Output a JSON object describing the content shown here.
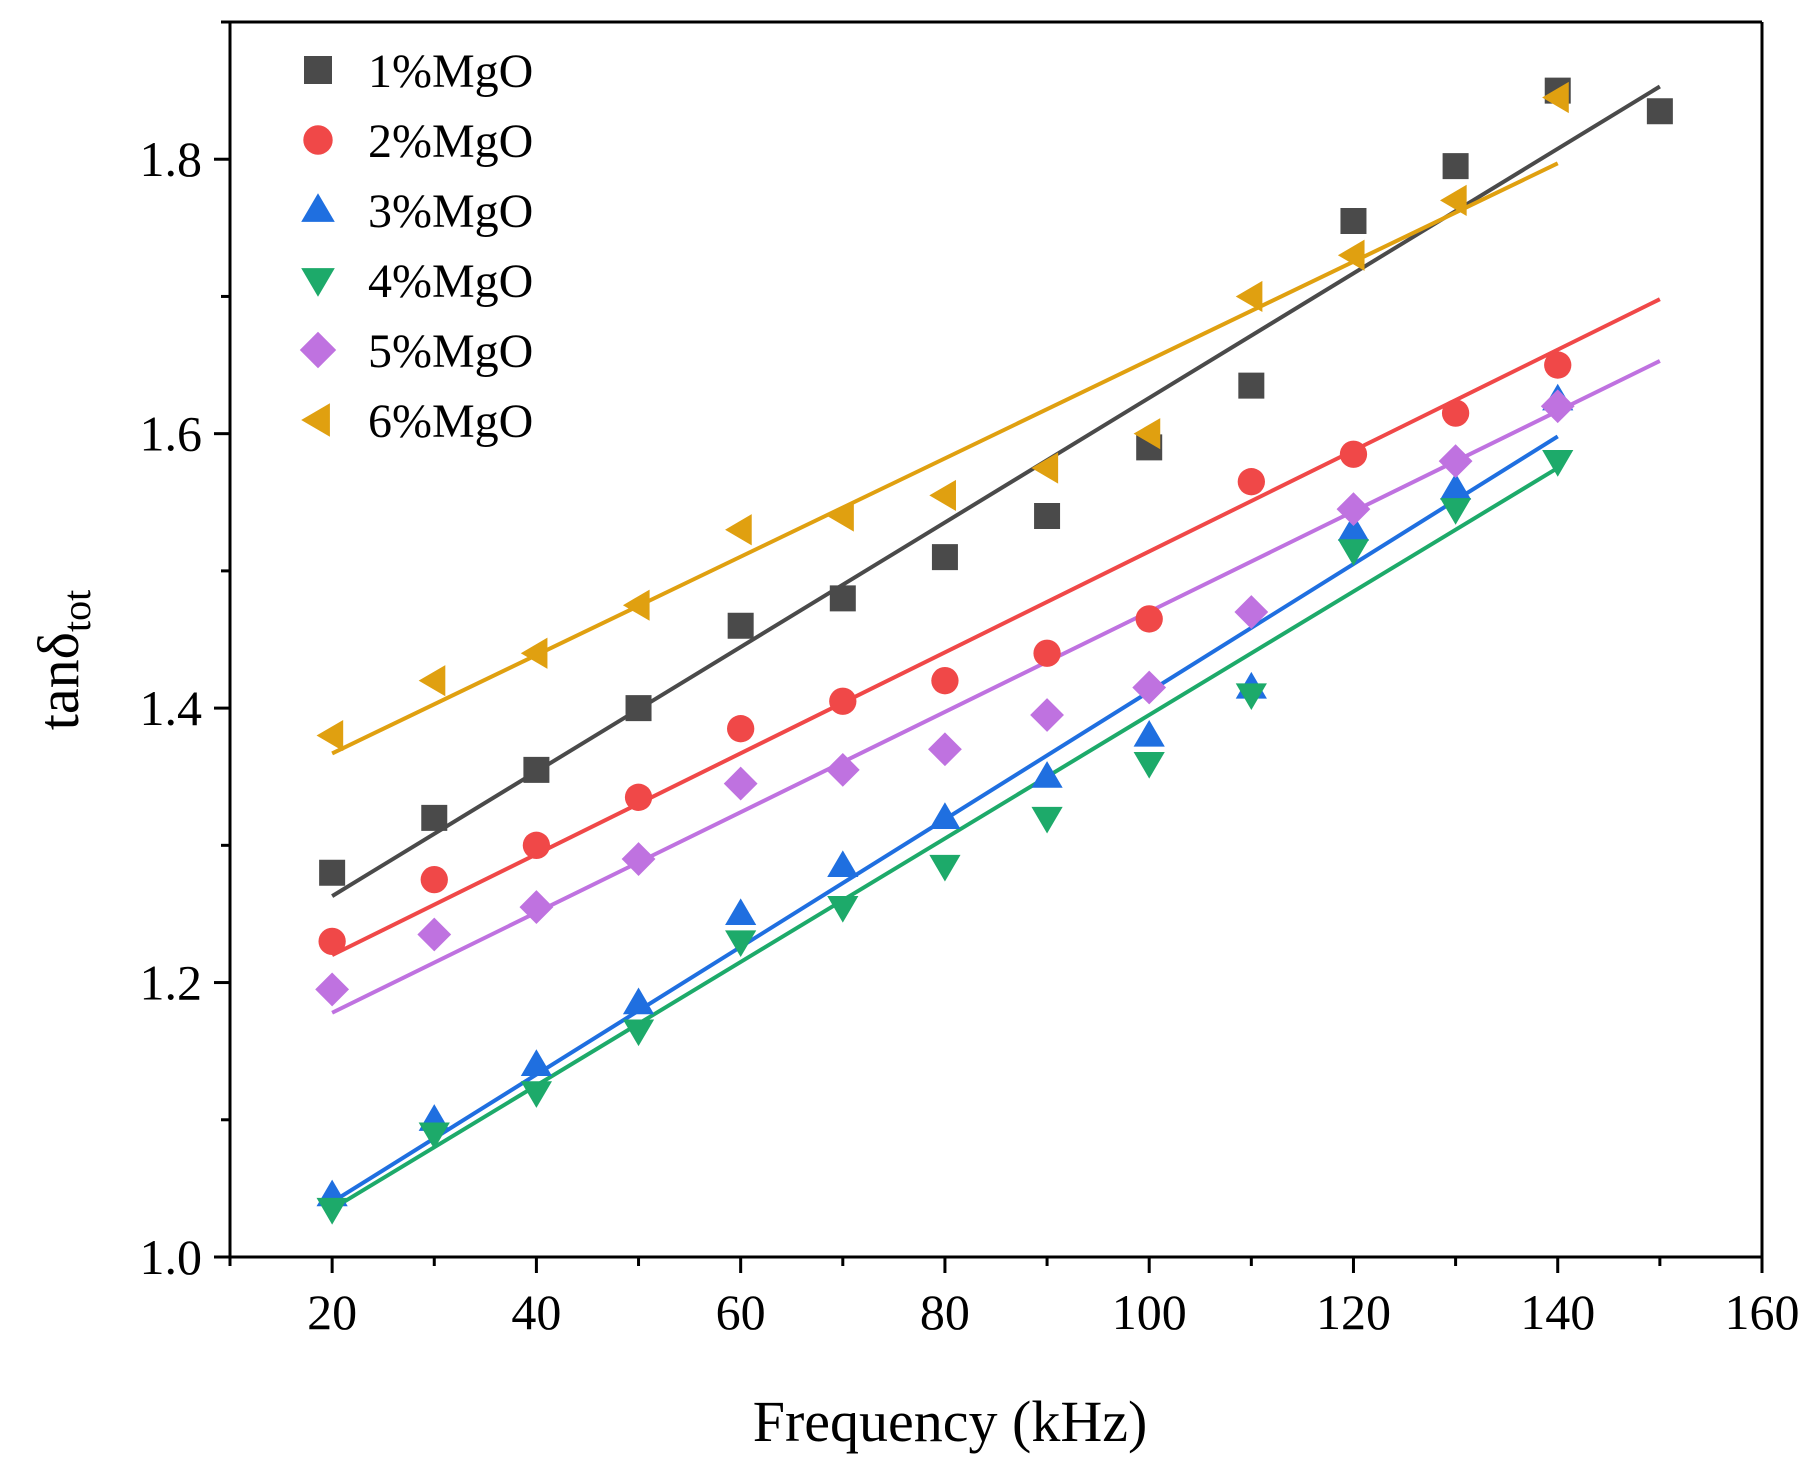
{
  "chart_data": {
    "type": "scatter",
    "title": "",
    "xlabel": "Frequency (kHz)",
    "ylabel": {
      "main": "tanδ",
      "sub": "tot"
    },
    "xlim": [
      10,
      160
    ],
    "ylim": [
      1.0,
      1.9
    ],
    "xticks": [
      20,
      40,
      60,
      80,
      100,
      120,
      140,
      160
    ],
    "yticks": [
      1.0,
      1.2,
      1.4,
      1.6,
      1.8
    ],
    "grid": false,
    "legend_position": "top-left",
    "series": [
      {
        "name": "1%MgO",
        "marker": "square",
        "color": "#4a4a4a",
        "x": [
          20,
          30,
          40,
          50,
          60,
          70,
          80,
          90,
          100,
          110,
          120,
          130,
          140,
          150
        ],
        "y": [
          1.28,
          1.32,
          1.355,
          1.4,
          1.46,
          1.48,
          1.51,
          1.54,
          1.59,
          1.635,
          1.755,
          1.795,
          1.85,
          1.835
        ],
        "fit": [
          [
            20,
            1.263
          ],
          [
            150,
            1.853
          ]
        ]
      },
      {
        "name": "2%MgO",
        "marker": "circle",
        "color": "#f04848",
        "x": [
          20,
          30,
          40,
          50,
          60,
          70,
          80,
          90,
          100,
          110,
          120,
          130,
          140
        ],
        "y": [
          1.23,
          1.275,
          1.3,
          1.335,
          1.385,
          1.405,
          1.42,
          1.44,
          1.465,
          1.565,
          1.585,
          1.615,
          1.65
        ],
        "fit": [
          [
            20,
            1.22
          ],
          [
            150,
            1.698
          ]
        ]
      },
      {
        "name": "3%MgO",
        "marker": "triangle-up",
        "color": "#1f6fe0",
        "x": [
          20,
          30,
          40,
          50,
          60,
          70,
          80,
          90,
          100,
          110,
          120,
          130,
          140
        ],
        "y": [
          1.045,
          1.1,
          1.14,
          1.185,
          1.25,
          1.285,
          1.32,
          1.35,
          1.38,
          1.415,
          1.53,
          1.56,
          1.625
        ],
        "fit": [
          [
            20,
            1.04
          ],
          [
            140,
            1.598
          ]
        ]
      },
      {
        "name": "4%MgO",
        "marker": "triangle-down",
        "color": "#1daa6a",
        "x": [
          20,
          30,
          40,
          50,
          60,
          70,
          80,
          90,
          100,
          110,
          120,
          130,
          140
        ],
        "y": [
          1.035,
          1.09,
          1.12,
          1.165,
          1.23,
          1.255,
          1.285,
          1.32,
          1.36,
          1.41,
          1.515,
          1.545,
          1.58
        ],
        "fit": [
          [
            20,
            1.035
          ],
          [
            140,
            1.575
          ]
        ]
      },
      {
        "name": "5%MgO",
        "marker": "diamond",
        "color": "#bf72e0",
        "x": [
          20,
          30,
          40,
          50,
          60,
          70,
          80,
          90,
          100,
          110,
          120,
          130,
          140
        ],
        "y": [
          1.195,
          1.235,
          1.255,
          1.29,
          1.345,
          1.355,
          1.37,
          1.395,
          1.415,
          1.47,
          1.545,
          1.58,
          1.62
        ],
        "fit": [
          [
            20,
            1.178
          ],
          [
            150,
            1.653
          ]
        ]
      },
      {
        "name": "6%MgO",
        "marker": "triangle-left",
        "color": "#e0a010",
        "x": [
          20,
          30,
          40,
          50,
          60,
          70,
          80,
          90,
          100,
          110,
          120,
          130,
          140
        ],
        "y": [
          1.38,
          1.42,
          1.44,
          1.475,
          1.53,
          1.54,
          1.555,
          1.575,
          1.6,
          1.7,
          1.73,
          1.77,
          1.845
        ],
        "fit": [
          [
            20,
            1.367
          ],
          [
            140,
            1.797
          ]
        ]
      }
    ]
  }
}
